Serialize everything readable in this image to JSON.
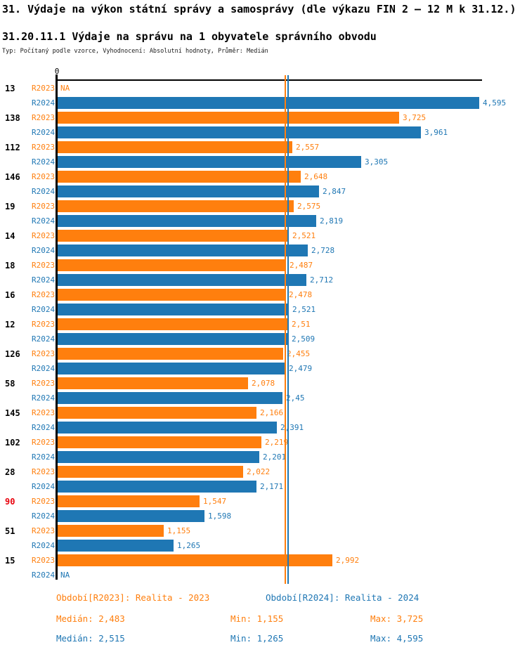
{
  "header": {
    "title": "31. Výdaje na výkon státní správy a samosprávy (dle výkazu FIN 2 – 12 M k 31.12.)",
    "subtitle": "31.20.11.1 Výdaje na správu na 1 obyvatele správního obvodu",
    "meta": "Typ: Počítaný podle vzorce, Vyhodnocení: Absolutní hodnoty, Průměr: Medián"
  },
  "chart_data": {
    "type": "bar",
    "orientation": "horizontal",
    "axis_origin_label": "0",
    "xlim": [
      0,
      4595
    ],
    "grid": false,
    "series_labels": [
      "R2023",
      "R2024"
    ],
    "colors": {
      "r2023": "#ff7f0e",
      "r2024": "#1f77b4",
      "highlight_row": "#e8000b",
      "axis": "#000000"
    },
    "medians": {
      "r2023": 2483,
      "r2024": 2515
    },
    "rows": [
      {
        "id": "13",
        "highlight": false,
        "r2023": null,
        "r2023_label": "NA",
        "r2024": 4595,
        "r2024_label": "4,595"
      },
      {
        "id": "138",
        "highlight": false,
        "r2023": 3725,
        "r2023_label": "3,725",
        "r2024": 3961,
        "r2024_label": "3,961"
      },
      {
        "id": "112",
        "highlight": false,
        "r2023": 2557,
        "r2023_label": "2,557",
        "r2024": 3305,
        "r2024_label": "3,305"
      },
      {
        "id": "146",
        "highlight": false,
        "r2023": 2648,
        "r2023_label": "2,648",
        "r2024": 2847,
        "r2024_label": "2,847"
      },
      {
        "id": "19",
        "highlight": false,
        "r2023": 2575,
        "r2023_label": "2,575",
        "r2024": 2819,
        "r2024_label": "2,819"
      },
      {
        "id": "14",
        "highlight": false,
        "r2023": 2521,
        "r2023_label": "2,521",
        "r2024": 2728,
        "r2024_label": "2,728"
      },
      {
        "id": "18",
        "highlight": false,
        "r2023": 2487,
        "r2023_label": "2,487",
        "r2024": 2712,
        "r2024_label": "2,712"
      },
      {
        "id": "16",
        "highlight": false,
        "r2023": 2478,
        "r2023_label": "2,478",
        "r2024": 2521,
        "r2024_label": "2,521"
      },
      {
        "id": "12",
        "highlight": false,
        "r2023": 2510,
        "r2023_label": "2,51",
        "r2024": 2509,
        "r2024_label": "2,509"
      },
      {
        "id": "126",
        "highlight": false,
        "r2023": 2455,
        "r2023_label": "2,455",
        "r2024": 2479,
        "r2024_label": "2,479"
      },
      {
        "id": "58",
        "highlight": false,
        "r2023": 2078,
        "r2023_label": "2,078",
        "r2024": 2450,
        "r2024_label": "2,45"
      },
      {
        "id": "145",
        "highlight": false,
        "r2023": 2166,
        "r2023_label": "2,166",
        "r2024": 2391,
        "r2024_label": "2,391"
      },
      {
        "id": "102",
        "highlight": false,
        "r2023": 2219,
        "r2023_label": "2,219",
        "r2024": 2201,
        "r2024_label": "2,201"
      },
      {
        "id": "28",
        "highlight": false,
        "r2023": 2022,
        "r2023_label": "2,022",
        "r2024": 2171,
        "r2024_label": "2,171"
      },
      {
        "id": "90",
        "highlight": true,
        "r2023": 1547,
        "r2023_label": "1,547",
        "r2024": 1598,
        "r2024_label": "1,598"
      },
      {
        "id": "51",
        "highlight": false,
        "r2023": 1155,
        "r2023_label": "1,155",
        "r2024": 1265,
        "r2024_label": "1,265"
      },
      {
        "id": "15",
        "highlight": false,
        "r2023": 2992,
        "r2023_label": "2,992",
        "r2024": null,
        "r2024_label": "NA"
      }
    ]
  },
  "footer": {
    "period_2023": "Období[R2023]: Realita - 2023",
    "period_2024": "Období[R2024]: Realita - 2024",
    "stats_2023": {
      "median": "Medián: 2,483",
      "min": "Min: 1,155",
      "max": "Max: 3,725"
    },
    "stats_2024": {
      "median": "Medián: 2,515",
      "min": "Min: 1,265",
      "max": "Max: 4,595"
    }
  }
}
